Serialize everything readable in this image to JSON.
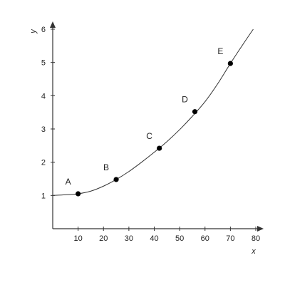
{
  "chart_data": {
    "type": "scatter",
    "title": "",
    "xlabel": "x",
    "ylabel": "y",
    "xlim": [
      0,
      80
    ],
    "ylim": [
      0,
      6
    ],
    "xticks": [
      10,
      20,
      30,
      40,
      50,
      60,
      70,
      80
    ],
    "yticks": [
      1,
      2,
      3,
      4,
      5,
      6
    ],
    "grid": false,
    "series": [
      {
        "points": [
          {
            "label": "A",
            "x": 10,
            "y": 1.05
          },
          {
            "label": "B",
            "x": 25,
            "y": 1.48
          },
          {
            "label": "C",
            "x": 42,
            "y": 2.42
          },
          {
            "label": "D",
            "x": 56,
            "y": 3.52
          },
          {
            "label": "E",
            "x": 70,
            "y": 4.97
          }
        ]
      }
    ],
    "curve": {
      "type": "line",
      "x": [
        0,
        5,
        10,
        15,
        20,
        25,
        30,
        35,
        40,
        45,
        50,
        55,
        60,
        65,
        70,
        75,
        79
      ],
      "y": [
        1.0,
        1.02,
        1.05,
        1.13,
        1.28,
        1.48,
        1.72,
        2.0,
        2.3,
        2.62,
        2.98,
        3.38,
        3.82,
        4.36,
        4.97,
        5.55,
        6.0
      ]
    }
  }
}
